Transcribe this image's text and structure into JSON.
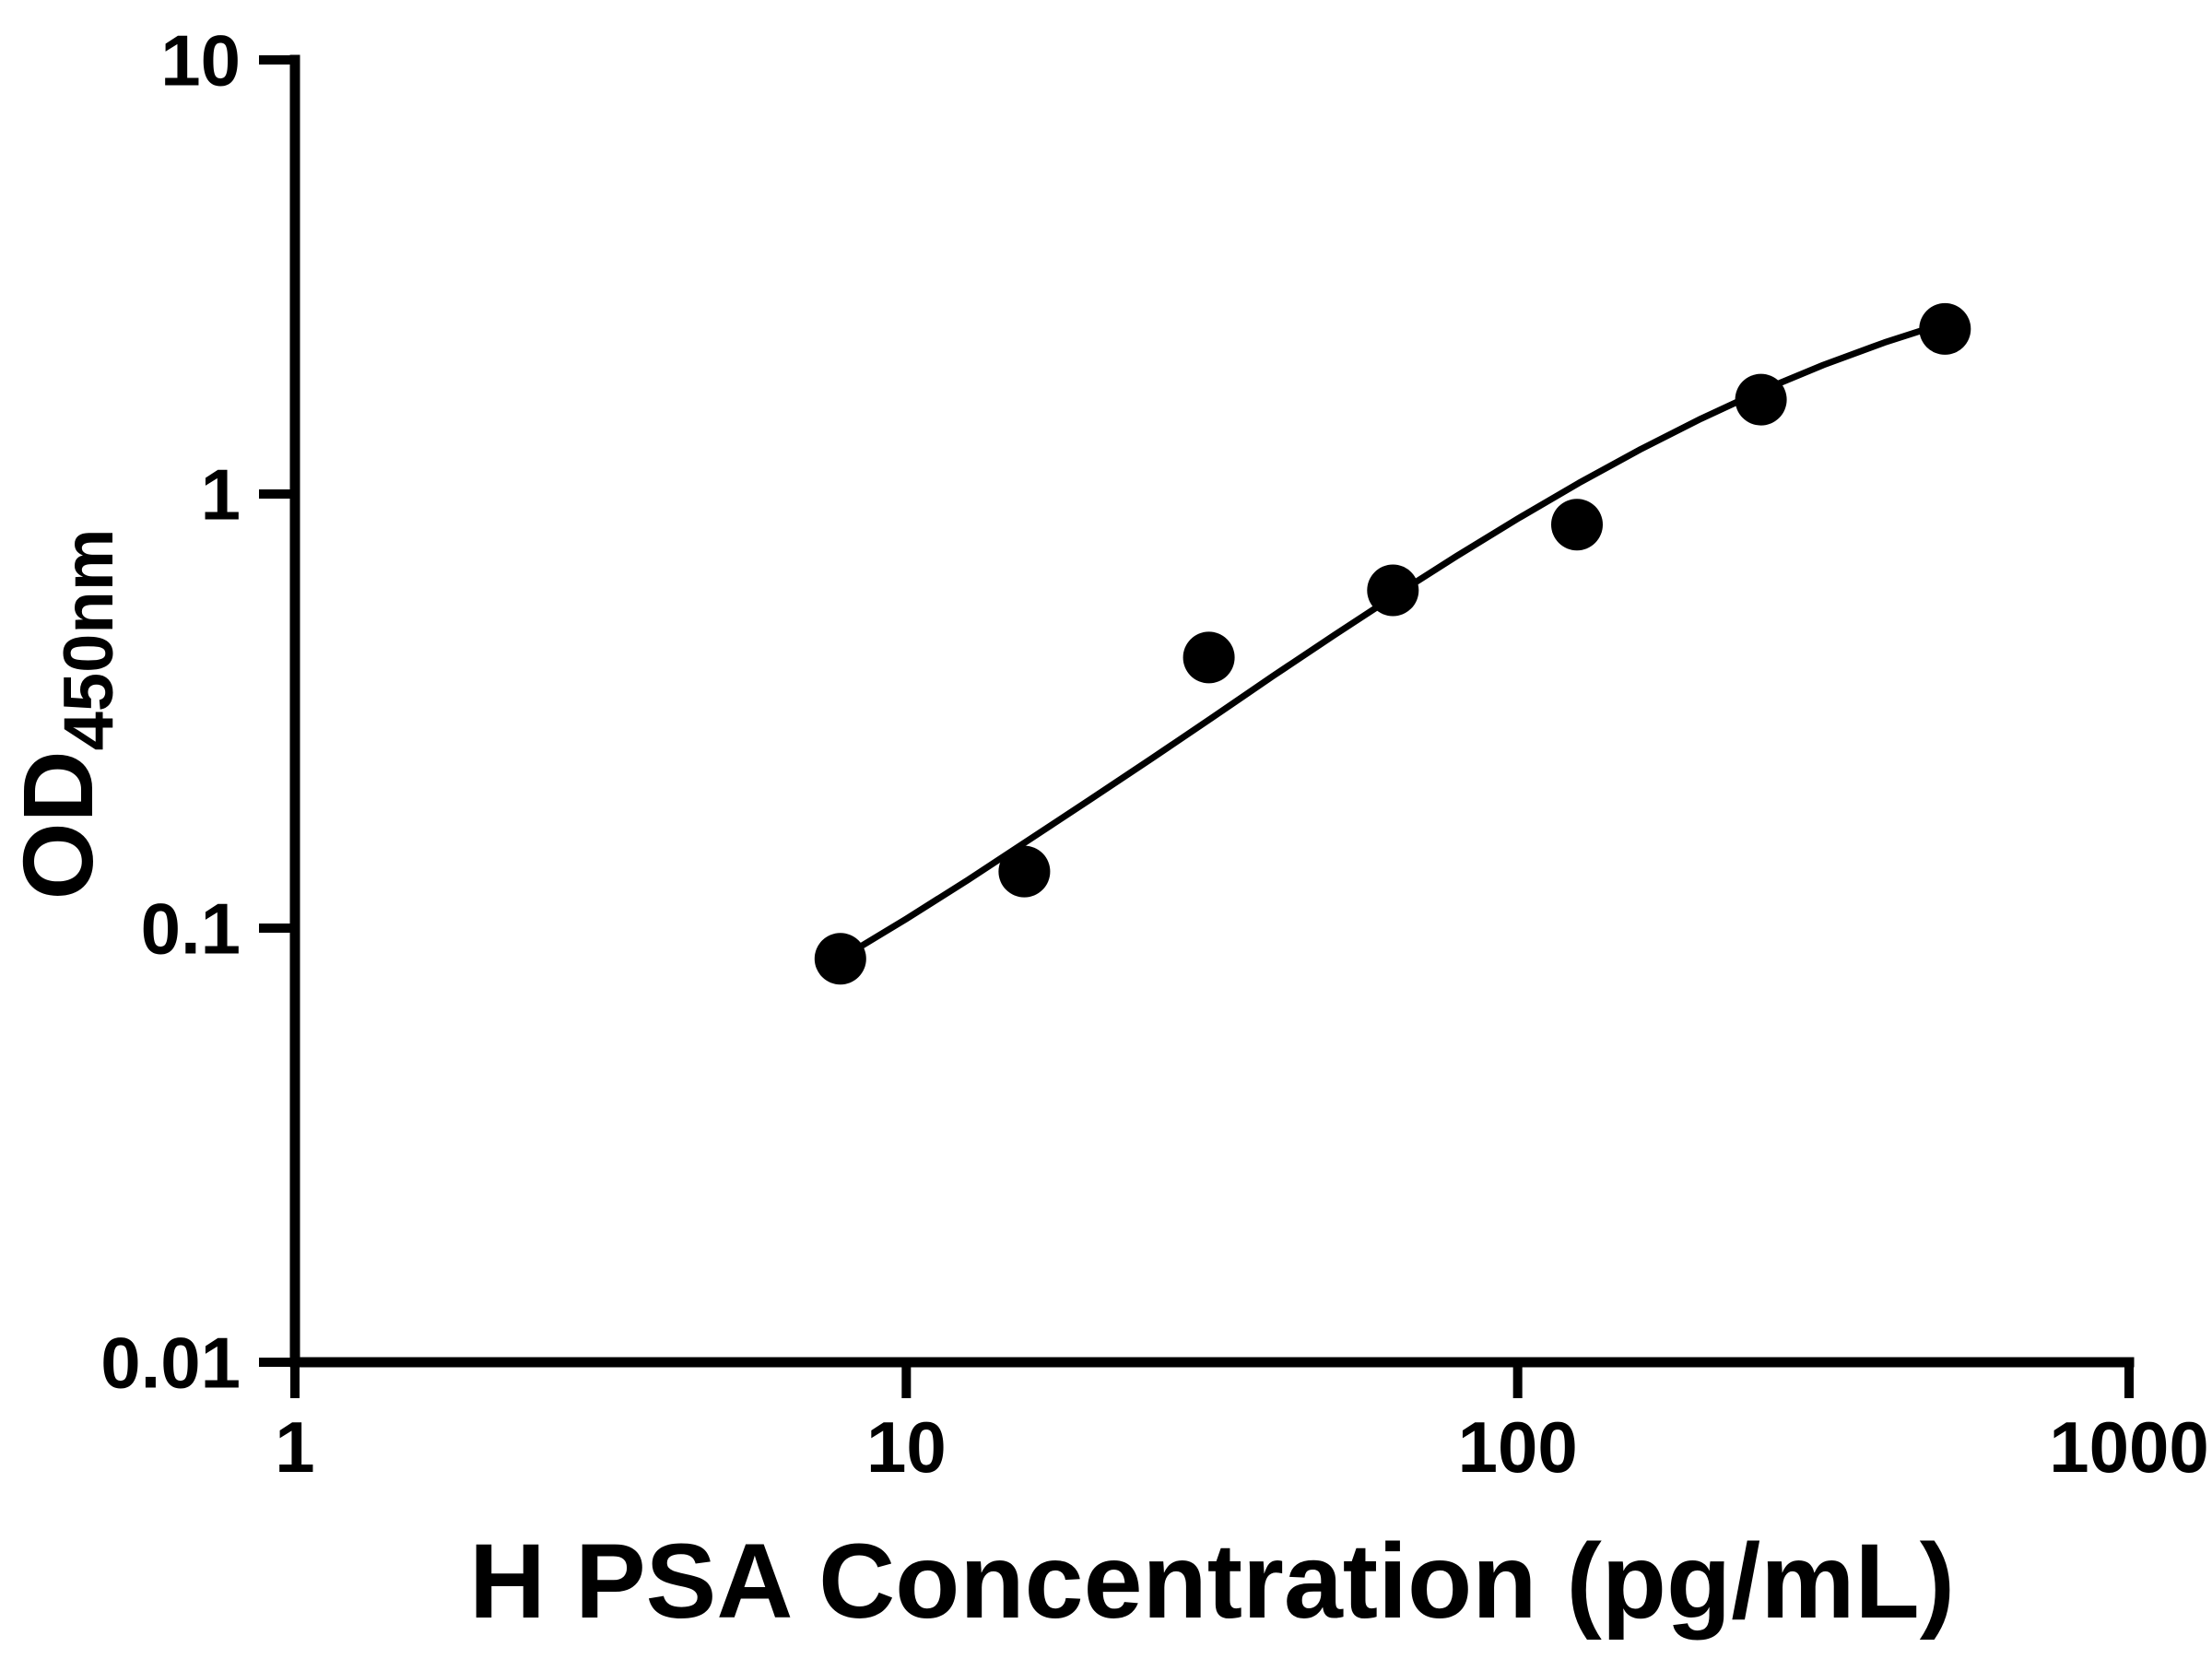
{
  "chart_data": {
    "type": "scatter",
    "title": "",
    "xlabel": "H PSA Concentration (pg/mL)",
    "ylabel": {
      "prefix": "OD",
      "subscript": "450nm"
    },
    "x_scale": "log",
    "y_scale": "log",
    "xlim": [
      1,
      1000
    ],
    "ylim": [
      0.01,
      10
    ],
    "grid": "off",
    "legend": "none",
    "x_ticks": [
      {
        "value": 1,
        "label": "1"
      },
      {
        "value": 10,
        "label": "10"
      },
      {
        "value": 100,
        "label": "100"
      },
      {
        "value": 1000,
        "label": "1000"
      }
    ],
    "y_ticks": [
      {
        "value": 10,
        "label": "10"
      },
      {
        "value": 1,
        "label": "1"
      },
      {
        "value": 0.1,
        "label": "0.1"
      },
      {
        "value": 0.01,
        "label": "0.01"
      }
    ],
    "points": [
      [
        7.8,
        0.085
      ],
      [
        15.6,
        0.135
      ],
      [
        31.25,
        0.42
      ],
      [
        62.5,
        0.6
      ],
      [
        125,
        0.85
      ],
      [
        250,
        1.65
      ],
      [
        500,
        2.4
      ]
    ],
    "curve": [
      [
        7.8,
        0.085
      ],
      [
        10,
        0.105
      ],
      [
        12.6,
        0.129
      ],
      [
        15.8,
        0.159
      ],
      [
        20,
        0.198
      ],
      [
        25.1,
        0.245
      ],
      [
        31.6,
        0.305
      ],
      [
        39.8,
        0.381
      ],
      [
        50.1,
        0.473
      ],
      [
        63.1,
        0.585
      ],
      [
        79.4,
        0.719
      ],
      [
        100,
        0.877
      ],
      [
        125.9,
        1.06
      ],
      [
        158.5,
        1.266
      ],
      [
        199.5,
        1.491
      ],
      [
        251.2,
        1.733
      ],
      [
        316.2,
        1.983
      ],
      [
        398.1,
        2.234
      ],
      [
        500,
        2.476
      ]
    ],
    "colors": {
      "marker": "#000000",
      "curve": "#000000",
      "axis": "#000000",
      "background": "#ffffff"
    },
    "marker_shape": "circle"
  }
}
